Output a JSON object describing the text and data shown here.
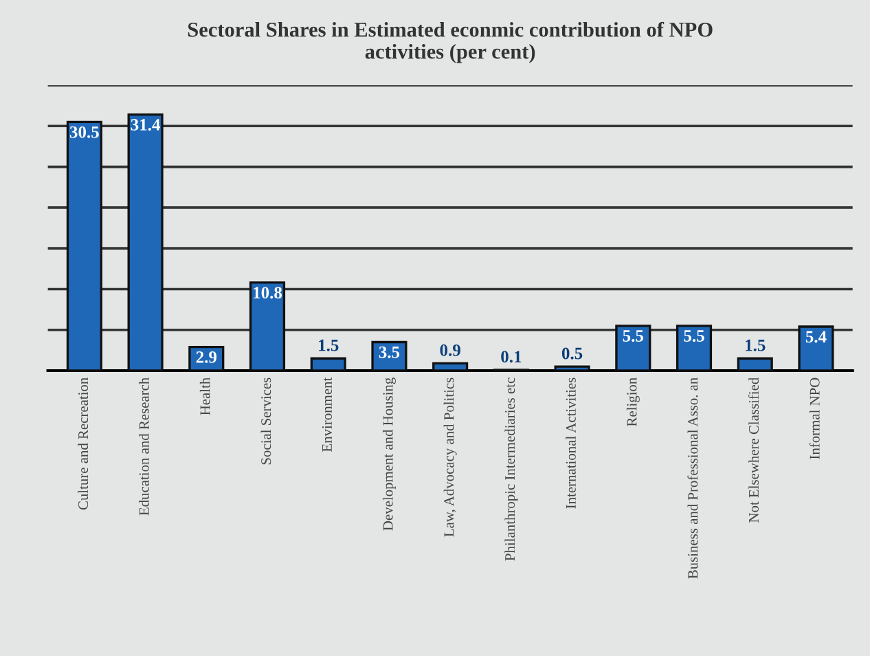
{
  "chart_data": {
    "type": "bar",
    "title": "Sectoral Shares in Estimated econmic contribution of NPO\nactivities (per cent)",
    "categories": [
      "Culture and Recreation",
      "Education and Research",
      "Health",
      "Social Services",
      "Environment",
      "Development and Housing",
      "Law, Advocacy and Politics",
      "Philanthropic Intermediaries etc",
      "International Activities",
      "Religion",
      "Business and Professional Asso. an",
      "Not Elsewhere Classified",
      "Informal NPO"
    ],
    "values": [
      30.5,
      31.4,
      2.9,
      10.8,
      1.5,
      3.5,
      0.9,
      0.1,
      0.5,
      5.5,
      5.5,
      1.5,
      5.4
    ],
    "color": "#1f68b8",
    "data_labels": true,
    "ylim": [
      0,
      35
    ],
    "yticks": [
      {
        "value": 0,
        "label": null
      },
      {
        "value": 5,
        "label": null
      },
      {
        "value": 10,
        "label": null
      },
      {
        "value": 15,
        "label": null
      },
      {
        "value": 20,
        "label": null
      },
      {
        "value": 25,
        "label": null
      },
      {
        "value": 30,
        "label": null
      },
      {
        "value": 35,
        "label": null
      }
    ],
    "grid": "y",
    "tick_labels": "x"
  }
}
